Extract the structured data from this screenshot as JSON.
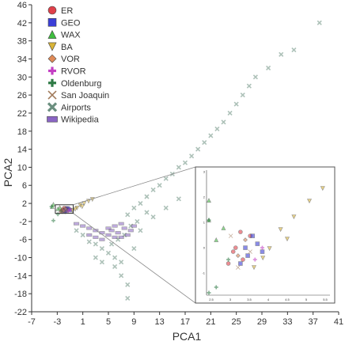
{
  "chart_data": {
    "type": "scatter",
    "xlabel": "PCA1",
    "ylabel": "PCA2",
    "xlim": [
      -7,
      41
    ],
    "ylim": [
      -22,
      46
    ],
    "x_ticks": [
      -7,
      -3,
      1,
      5,
      9,
      13,
      17,
      21,
      25,
      29,
      33,
      37,
      41
    ],
    "y_ticks": [
      -22,
      -18,
      -14,
      -10,
      -6,
      -2,
      2,
      6,
      10,
      14,
      18,
      22,
      26,
      30,
      34,
      38,
      42,
      46
    ],
    "grid": false,
    "legend_position": "top-left",
    "inset": {
      "x_tick_labels": [
        "2.5",
        "3",
        "3.5",
        "4",
        "4.5",
        "5",
        "5.5"
      ],
      "y_tick_labels": [
        "3",
        "2",
        "1",
        "0",
        "-1"
      ],
      "zoom_box_x": [
        -3.3,
        -0.5
      ],
      "zoom_box_y": [
        -0.2,
        1.7
      ]
    },
    "series": [
      {
        "name": "ER",
        "marker": "circle",
        "color": "#e0404a",
        "points": [
          [
            -2.1,
            0.6
          ],
          [
            -1.8,
            0.3
          ],
          [
            -1.5,
            0.9
          ],
          [
            -2.4,
            0.2
          ],
          [
            -1.9,
            1.0
          ],
          [
            -2.2,
            0.5
          ]
        ]
      },
      {
        "name": "GEO",
        "marker": "square",
        "color": "#3b3fd8",
        "points": [
          [
            -1.6,
            0.4
          ],
          [
            -1.2,
            0.7
          ],
          [
            -1.9,
            0.2
          ],
          [
            -1.4,
            0.9
          ],
          [
            -1.0,
            0.5
          ],
          [
            -1.7,
            0.6
          ]
        ]
      },
      {
        "name": "WAX",
        "marker": "triangle-up",
        "color": "#3fbf3f",
        "points": [
          [
            -3.8,
            1.3
          ],
          [
            -3.6,
            1.8
          ],
          [
            -2.6,
            1.1
          ],
          [
            -2.9,
            0.8
          ]
        ]
      },
      {
        "name": "BA",
        "marker": "triangle-down",
        "color": "#d9b437",
        "points": [
          [
            -0.6,
            0.4
          ],
          [
            0.1,
            1.0
          ],
          [
            0.6,
            1.6
          ],
          [
            1.2,
            2.0
          ],
          [
            1.9,
            2.5
          ],
          [
            2.5,
            2.9
          ],
          [
            -0.2,
            0.7
          ],
          [
            0.9,
            1.3
          ]
        ]
      },
      {
        "name": "VOR",
        "marker": "diamond",
        "color": "#e08a57",
        "points": [
          [
            -2.0,
            0.4
          ],
          [
            -1.7,
            0.8
          ]
        ]
      },
      {
        "name": "RVOR",
        "marker": "plus",
        "color": "#c33fc3",
        "points": [
          [
            -1.3,
            0.3
          ],
          [
            -1.0,
            0.6
          ]
        ]
      },
      {
        "name": "Oldenburg",
        "marker": "plus",
        "color": "#2e7a45",
        "points": [
          [
            -3.9,
            1.3
          ],
          [
            -3.6,
            -1.8
          ],
          [
            -2.4,
            0.3
          ],
          [
            -2.9,
            -0.4
          ]
        ]
      },
      {
        "name": "San Joaquin",
        "marker": "x",
        "color": "#a07a5a",
        "points": [
          [
            -2.3,
            0.9
          ],
          [
            -2.0,
            0.1
          ],
          [
            -1.5,
            0.5
          ]
        ]
      },
      {
        "name": "Airports",
        "marker": "x-bold",
        "color": "#6b8f7f",
        "points": [
          [
            8,
            -0.5
          ],
          [
            9,
            1
          ],
          [
            10,
            2
          ],
          [
            11,
            3.5
          ],
          [
            12,
            5
          ],
          [
            13,
            6
          ],
          [
            14,
            7.5
          ],
          [
            15,
            8.5
          ],
          [
            16,
            10
          ],
          [
            17,
            11
          ],
          [
            18,
            12.5
          ],
          [
            19,
            14
          ],
          [
            20,
            15.5
          ],
          [
            21,
            17
          ],
          [
            22,
            18.5
          ],
          [
            23,
            20
          ],
          [
            24,
            22
          ],
          [
            25,
            24
          ],
          [
            26,
            26
          ],
          [
            27,
            28
          ],
          [
            28,
            30
          ],
          [
            30,
            32
          ],
          [
            32,
            35
          ],
          [
            34,
            36
          ],
          [
            38,
            42
          ],
          [
            0,
            -4
          ],
          [
            1,
            -5
          ],
          [
            2,
            -6.5
          ],
          [
            3,
            -7
          ],
          [
            4,
            -8
          ],
          [
            5,
            -9
          ],
          [
            6,
            -10
          ],
          [
            7,
            -11
          ],
          [
            5.5,
            -7
          ],
          [
            6.5,
            -6
          ],
          [
            7.5,
            -5
          ],
          [
            8.5,
            -3
          ],
          [
            9.5,
            -2
          ],
          [
            10,
            -4
          ],
          [
            12,
            -1
          ],
          [
            14,
            1
          ],
          [
            16,
            3
          ],
          [
            11,
            0
          ],
          [
            6,
            -12
          ],
          [
            7,
            -14
          ],
          [
            8,
            -16
          ],
          [
            8,
            -19
          ],
          [
            9,
            -8
          ],
          [
            4,
            -11
          ],
          [
            3,
            -10
          ]
        ]
      },
      {
        "name": "Wikipedia",
        "marker": "rect",
        "color": "#8a65c4",
        "points": [
          [
            0,
            -2.5
          ],
          [
            1,
            -3
          ],
          [
            2,
            -3.5
          ],
          [
            3,
            -4
          ],
          [
            4,
            -4.5
          ],
          [
            5,
            -5
          ],
          [
            6,
            -5.5
          ],
          [
            7,
            -5.5
          ],
          [
            8,
            -5
          ],
          [
            8.5,
            -4
          ],
          [
            9,
            -3
          ],
          [
            5,
            -3.5
          ],
          [
            6,
            -3
          ],
          [
            7,
            -2.5
          ],
          [
            4,
            -6
          ],
          [
            3,
            -5.5
          ],
          [
            2,
            -5
          ],
          [
            6.5,
            -4.5
          ],
          [
            7.5,
            -3.5
          ],
          [
            5.5,
            -4
          ]
        ]
      }
    ]
  }
}
